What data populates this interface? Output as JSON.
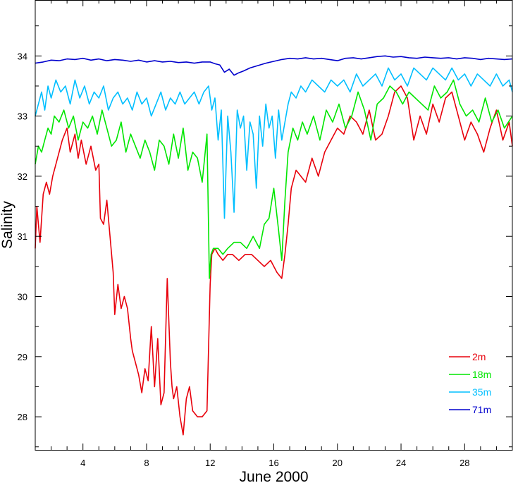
{
  "chart_data": {
    "type": "line",
    "xlabel": "June 2000",
    "ylabel": "Salinity",
    "xlim": [
      1,
      31
    ],
    "ylim": [
      27.45,
      34.93
    ],
    "x_ticks": [
      4,
      8,
      12,
      16,
      20,
      24,
      28
    ],
    "y_ticks": [
      28,
      29,
      30,
      31,
      32,
      33,
      34
    ],
    "grid": false,
    "legend_position": "lower-right",
    "series": [
      {
        "name": "2m",
        "color": "#e8000b",
        "x": [
          1.0,
          1.1,
          1.2,
          1.3,
          1.5,
          1.7,
          1.9,
          2.1,
          2.4,
          2.7,
          3.0,
          3.2,
          3.5,
          3.7,
          3.9,
          4.2,
          4.5,
          4.8,
          5.0,
          5.1,
          5.3,
          5.5,
          5.7,
          5.9,
          6.0,
          6.2,
          6.4,
          6.6,
          6.8,
          7.0,
          7.1,
          7.3,
          7.5,
          7.7,
          7.9,
          8.1,
          8.3,
          8.5,
          8.7,
          8.9,
          9.1,
          9.3,
          9.5,
          9.6,
          9.7,
          9.9,
          10.1,
          10.3,
          10.5,
          10.7,
          10.9,
          11.2,
          11.5,
          11.8,
          12.0,
          12.1,
          12.3,
          12.5,
          12.8,
          13.1,
          13.4,
          13.8,
          14.2,
          14.6,
          15.0,
          15.4,
          15.8,
          16.2,
          16.5,
          16.7,
          16.9,
          17.1,
          17.4,
          17.7,
          18.0,
          18.4,
          18.8,
          19.2,
          19.6,
          20.0,
          20.4,
          20.8,
          21.2,
          21.6,
          22.0,
          22.4,
          22.8,
          23.2,
          23.6,
          24.0,
          24.4,
          24.8,
          25.2,
          25.6,
          26.0,
          26.4,
          26.8,
          27.2,
          27.6,
          28.0,
          28.4,
          28.8,
          29.2,
          29.6,
          30.0,
          30.4,
          30.8,
          31.0
        ],
        "values": [
          30.8,
          31.5,
          31.2,
          30.9,
          31.7,
          31.9,
          31.7,
          32.0,
          32.3,
          32.6,
          32.8,
          32.4,
          32.7,
          32.3,
          32.6,
          32.2,
          32.5,
          32.1,
          32.2,
          31.3,
          31.2,
          31.6,
          31.0,
          30.4,
          29.7,
          30.2,
          29.8,
          30.0,
          29.8,
          29.3,
          29.1,
          28.9,
          28.7,
          28.4,
          28.8,
          28.6,
          29.5,
          28.5,
          29.3,
          28.2,
          28.4,
          30.3,
          28.9,
          28.5,
          28.3,
          28.5,
          28.0,
          27.7,
          28.3,
          28.5,
          28.1,
          28.0,
          28.0,
          28.1,
          30.2,
          30.7,
          30.8,
          30.7,
          30.6,
          30.7,
          30.7,
          30.6,
          30.7,
          30.7,
          30.6,
          30.5,
          30.6,
          30.4,
          30.3,
          30.7,
          31.2,
          31.8,
          32.1,
          32.0,
          31.9,
          32.3,
          32.0,
          32.4,
          32.6,
          32.8,
          32.7,
          33.0,
          32.9,
          32.7,
          33.1,
          32.6,
          32.7,
          33.0,
          33.4,
          33.5,
          33.3,
          32.6,
          33.0,
          32.7,
          33.2,
          32.9,
          33.3,
          33.4,
          33.0,
          32.6,
          32.9,
          32.7,
          32.4,
          32.8,
          33.1,
          32.6,
          32.9,
          32.5
        ]
      },
      {
        "name": "18m",
        "color": "#00e600",
        "x": [
          1.0,
          1.2,
          1.4,
          1.6,
          1.8,
          2.0,
          2.2,
          2.5,
          2.8,
          3.1,
          3.4,
          3.7,
          4.0,
          4.3,
          4.6,
          4.9,
          5.2,
          5.5,
          5.8,
          6.1,
          6.4,
          6.7,
          7.0,
          7.3,
          7.6,
          7.9,
          8.2,
          8.5,
          8.8,
          9.1,
          9.4,
          9.7,
          10.0,
          10.3,
          10.6,
          10.9,
          11.2,
          11.5,
          11.8,
          11.95,
          12.05,
          12.2,
          12.5,
          12.8,
          13.1,
          13.5,
          13.9,
          14.3,
          14.7,
          15.1,
          15.4,
          15.7,
          16.0,
          16.3,
          16.5,
          16.7,
          16.9,
          17.2,
          17.5,
          17.8,
          18.1,
          18.5,
          18.9,
          19.3,
          19.7,
          20.1,
          20.5,
          20.9,
          21.3,
          21.7,
          22.1,
          22.5,
          22.9,
          23.3,
          23.7,
          24.1,
          24.5,
          24.9,
          25.3,
          25.7,
          26.1,
          26.5,
          26.9,
          27.3,
          27.7,
          28.1,
          28.5,
          28.9,
          29.3,
          29.7,
          30.1,
          30.5,
          31.0
        ],
        "values": [
          32.2,
          32.5,
          32.4,
          32.6,
          32.8,
          32.7,
          33.0,
          32.9,
          33.1,
          32.8,
          33.0,
          32.6,
          32.9,
          32.8,
          33.0,
          32.7,
          33.1,
          32.8,
          32.5,
          32.6,
          32.9,
          32.4,
          32.7,
          32.5,
          32.3,
          32.6,
          32.4,
          32.1,
          32.6,
          32.5,
          32.2,
          32.7,
          32.3,
          32.8,
          32.1,
          32.4,
          32.3,
          31.9,
          32.7,
          30.3,
          30.7,
          30.8,
          30.8,
          30.7,
          30.8,
          30.9,
          30.9,
          30.8,
          31.0,
          30.8,
          31.2,
          31.3,
          31.8,
          31.1,
          30.6,
          31.6,
          32.4,
          32.8,
          32.6,
          32.9,
          32.7,
          33.0,
          32.6,
          33.1,
          32.9,
          33.2,
          32.8,
          33.0,
          33.4,
          33.1,
          32.6,
          33.2,
          33.3,
          33.5,
          33.4,
          33.2,
          33.4,
          33.3,
          33.2,
          33.1,
          33.5,
          33.3,
          33.4,
          33.6,
          33.2,
          33.0,
          33.1,
          32.9,
          33.3,
          32.9,
          33.1,
          32.8,
          33.0
        ]
      },
      {
        "name": "35m",
        "color": "#00bfff",
        "x": [
          1.0,
          1.2,
          1.4,
          1.6,
          1.8,
          2.0,
          2.3,
          2.6,
          2.9,
          3.2,
          3.5,
          3.8,
          4.1,
          4.4,
          4.7,
          5.0,
          5.3,
          5.6,
          5.9,
          6.2,
          6.5,
          6.8,
          7.1,
          7.4,
          7.7,
          8.0,
          8.3,
          8.6,
          8.9,
          9.2,
          9.5,
          9.8,
          10.1,
          10.4,
          10.7,
          11.0,
          11.3,
          11.6,
          11.9,
          12.1,
          12.3,
          12.5,
          12.7,
          12.9,
          13.1,
          13.3,
          13.5,
          13.7,
          13.9,
          14.1,
          14.3,
          14.5,
          14.7,
          14.9,
          15.1,
          15.3,
          15.5,
          15.7,
          15.9,
          16.1,
          16.3,
          16.5,
          16.7,
          16.9,
          17.1,
          17.4,
          17.7,
          18.0,
          18.4,
          18.8,
          19.2,
          19.6,
          20.0,
          20.4,
          20.8,
          21.2,
          21.6,
          22.0,
          22.4,
          22.8,
          23.2,
          23.6,
          24.0,
          24.4,
          24.8,
          25.2,
          25.6,
          26.0,
          26.4,
          26.8,
          27.2,
          27.6,
          28.0,
          28.4,
          28.8,
          29.2,
          29.6,
          30.0,
          30.4,
          30.8,
          31.0
        ],
        "values": [
          33.0,
          33.2,
          33.4,
          33.1,
          33.5,
          33.3,
          33.6,
          33.4,
          33.5,
          33.2,
          33.6,
          33.3,
          33.5,
          33.2,
          33.4,
          33.3,
          33.5,
          33.1,
          33.3,
          33.4,
          33.2,
          33.3,
          33.1,
          33.4,
          33.2,
          33.3,
          33.0,
          33.2,
          33.4,
          33.1,
          33.3,
          33.2,
          33.4,
          33.2,
          33.3,
          33.4,
          33.2,
          33.4,
          33.5,
          33.1,
          33.3,
          32.6,
          33.1,
          31.3,
          33.0,
          32.4,
          31.4,
          33.1,
          32.8,
          33.0,
          32.1,
          32.9,
          32.7,
          31.8,
          33.0,
          32.5,
          33.2,
          32.8,
          33.0,
          32.3,
          33.1,
          32.6,
          32.9,
          33.2,
          33.4,
          33.3,
          33.5,
          33.4,
          33.6,
          33.5,
          33.4,
          33.6,
          33.5,
          33.6,
          33.4,
          33.7,
          33.5,
          33.6,
          33.7,
          33.5,
          33.8,
          33.6,
          33.7,
          33.5,
          33.8,
          33.7,
          33.6,
          33.8,
          33.7,
          33.6,
          33.8,
          33.6,
          33.7,
          33.5,
          33.7,
          33.6,
          33.5,
          33.7,
          33.5,
          33.6,
          33.4
        ]
      },
      {
        "name": "71m",
        "color": "#0000cd",
        "x": [
          1.0,
          1.5,
          2.0,
          2.5,
          3.0,
          3.5,
          4.0,
          4.5,
          5.0,
          5.5,
          6.0,
          6.5,
          7.0,
          7.5,
          8.0,
          8.5,
          9.0,
          9.5,
          10.0,
          10.5,
          11.0,
          11.5,
          12.0,
          12.3,
          12.6,
          12.9,
          13.2,
          13.5,
          13.8,
          14.1,
          14.5,
          15.0,
          15.5,
          16.0,
          16.5,
          17.0,
          17.5,
          18.0,
          18.5,
          19.0,
          19.5,
          20.0,
          20.5,
          21.0,
          21.5,
          22.0,
          22.5,
          23.0,
          23.5,
          24.0,
          24.5,
          25.0,
          25.5,
          26.0,
          26.5,
          27.0,
          27.5,
          28.0,
          28.5,
          29.0,
          29.5,
          30.0,
          30.5,
          31.0
        ],
        "values": [
          33.88,
          33.9,
          33.93,
          33.92,
          33.95,
          33.94,
          33.96,
          33.93,
          33.95,
          33.92,
          33.94,
          33.93,
          33.91,
          33.93,
          33.9,
          33.92,
          33.9,
          33.91,
          33.89,
          33.9,
          33.88,
          33.9,
          33.9,
          33.87,
          33.85,
          33.73,
          33.78,
          33.68,
          33.72,
          33.75,
          33.8,
          33.84,
          33.88,
          33.91,
          33.94,
          33.96,
          33.95,
          33.97,
          33.95,
          33.96,
          33.94,
          33.92,
          33.96,
          33.97,
          33.95,
          33.97,
          33.99,
          34.0,
          33.98,
          33.99,
          33.97,
          33.96,
          33.98,
          33.97,
          33.96,
          33.97,
          33.95,
          33.97,
          33.96,
          33.94,
          33.96,
          33.95,
          33.94,
          33.95
        ]
      }
    ]
  }
}
